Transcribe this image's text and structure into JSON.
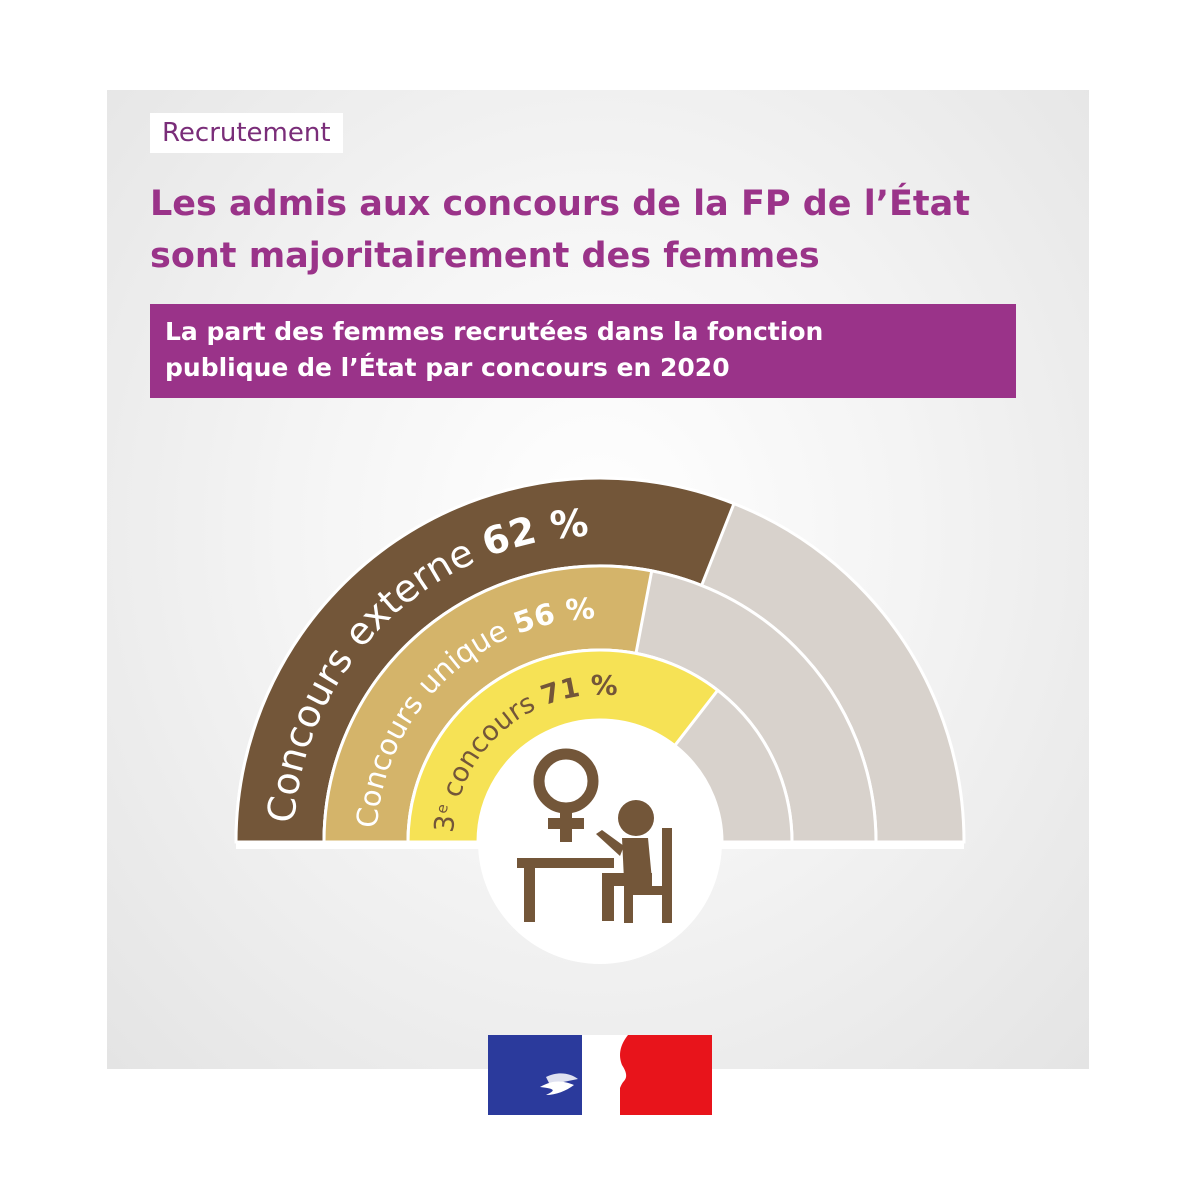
{
  "tag": "Recrutement",
  "title_lines": [
    "Les admis aux concours de la FP de l’État",
    "sont majoritairement des femmes"
  ],
  "subtitle_lines": [
    "La part des femmes recrutées dans la fonction",
    "publique de l’État par concours en 2020"
  ],
  "colors": {
    "accent": "#9a3389",
    "track": "#d8d2cc",
    "externe": "#735639",
    "unique": "#d4b46a",
    "troisieme": "#f6e255",
    "text_dark": "#735639",
    "flag_blue": "#2b3a9c",
    "flag_red": "#e8141b"
  },
  "icon": "woman-at-desk-icon",
  "logo": "marianne-logo",
  "chart_data": {
    "type": "radial-bar",
    "unit": "%",
    "ylim": [
      0,
      100
    ],
    "categories": [
      "Concours externe",
      "Concours unique",
      "3e concours"
    ],
    "values": [
      62,
      56,
      71
    ],
    "labels": [
      {
        "name": "Concours externe",
        "value_label": "62 %"
      },
      {
        "name": "Concours unique",
        "value_label": "56 %"
      },
      {
        "name_base": "3",
        "name_sup": "e",
        "name_rest": " concours",
        "value_label": "71 %"
      }
    ]
  }
}
